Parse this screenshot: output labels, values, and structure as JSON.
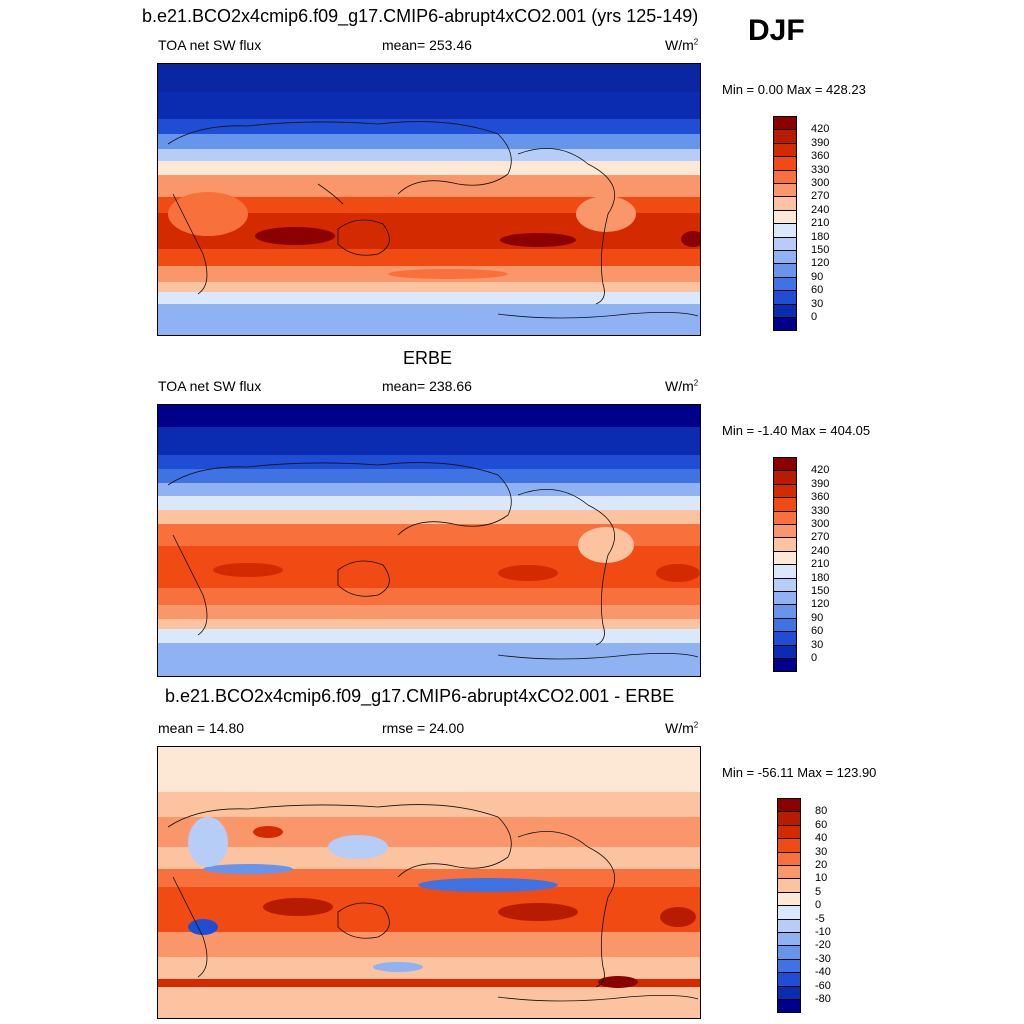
{
  "season": "DJF",
  "panels": [
    {
      "title": "b.e21.BCO2x4cmip6.f09_g17.CMIP6-abrupt4xCO2.001 (yrs 125-149)",
      "left_label": "TOA net SW flux",
      "center_label": "mean= 253.46",
      "units_base": "W/m",
      "units_exp": "2",
      "minmax": "Min =   0.00 Max = 428.23",
      "colorbar": {
        "ticks": [
          "420",
          "390",
          "360",
          "330",
          "300",
          "270",
          "240",
          "210",
          "180",
          "150",
          "120",
          "90",
          "60",
          "30",
          "0"
        ],
        "colors": [
          "#8b0000",
          "#b71c00",
          "#d42a00",
          "#ef4b12",
          "#f8703c",
          "#f9976a",
          "#fbc39f",
          "#fde8d6",
          "#dbe8fb",
          "#b6cdf7",
          "#8fb2f2",
          "#6795ec",
          "#3f72e2",
          "#1f4ed4",
          "#0b2cb0",
          "#00008b"
        ]
      }
    },
    {
      "title": "ERBE",
      "left_label": "TOA net SW flux",
      "center_label": "mean= 238.66",
      "units_base": "W/m",
      "units_exp": "2",
      "minmax": "Min =  -1.40 Max = 404.05",
      "colorbar": {
        "ticks": [
          "420",
          "390",
          "360",
          "330",
          "300",
          "270",
          "240",
          "210",
          "180",
          "150",
          "120",
          "90",
          "60",
          "30",
          "0"
        ],
        "colors": [
          "#8b0000",
          "#b71c00",
          "#d42a00",
          "#ef4b12",
          "#f8703c",
          "#f9976a",
          "#fbc39f",
          "#fde8d6",
          "#dbe8fb",
          "#b6cdf7",
          "#8fb2f2",
          "#6795ec",
          "#3f72e2",
          "#1f4ed4",
          "#0b2cb0",
          "#00008b"
        ]
      }
    },
    {
      "title": "b.e21.BCO2x4cmip6.f09_g17.CMIP6-abrupt4xCO2.001 - ERBE",
      "left_label": "mean =  14.80",
      "center_label": "rmse =  24.00",
      "units_base": "W/m",
      "units_exp": "2",
      "minmax": "Min = -56.11 Max = 123.90",
      "colorbar": {
        "ticks": [
          "80",
          "60",
          "40",
          "30",
          "20",
          "10",
          "5",
          "0",
          "-5",
          "-10",
          "-20",
          "-30",
          "-40",
          "-60",
          "-80"
        ],
        "colors": [
          "#8b0000",
          "#b71c00",
          "#d42a00",
          "#ef4b12",
          "#f8703c",
          "#f9976a",
          "#fbc39f",
          "#fde8d6",
          "#dbe8fb",
          "#b6cdf7",
          "#8fb2f2",
          "#6795ec",
          "#3f72e2",
          "#1f4ed4",
          "#0b2cb0",
          "#00008b"
        ]
      }
    }
  ]
}
